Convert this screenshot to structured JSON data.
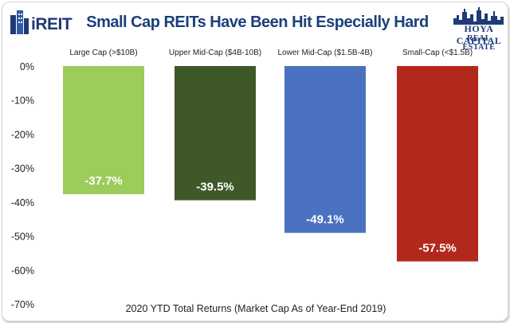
{
  "brand_left": "iREIT",
  "brand_right": {
    "line1": "HOYA CAPITAL",
    "line2": "REAL ESTATE"
  },
  "colors": {
    "title": "#1c3f7a",
    "bars": [
      "#9ccc5a",
      "#3e5827",
      "#4b72c0",
      "#b2281c"
    ]
  },
  "chart_data": {
    "type": "bar",
    "title": "Small Cap REITs Have Been Hit Especially Hard",
    "xlabel": "2020 YTD Total Returns (Market Cap As of Year-End 2019)",
    "ylabel": "",
    "categories": [
      "Large Cap (>$10B)",
      "Upper Mid-Cap ($4B-10B)",
      "Lower Mid-Cap ($1.5B-4B)",
      "Small-Cap (<$1.5B)"
    ],
    "values": [
      -37.7,
      -39.5,
      -49.1,
      -57.5
    ],
    "value_labels": [
      "-37.7%",
      "-39.5%",
      "-49.1%",
      "-57.5%"
    ],
    "ylim": [
      -70,
      0
    ],
    "yticks": [
      0,
      -10,
      -20,
      -30,
      -40,
      -50,
      -60,
      -70
    ],
    "ytick_labels": [
      "0%",
      "-10%",
      "-20%",
      "-30%",
      "-40%",
      "-50%",
      "-60%",
      "-70%"
    ],
    "grid": false,
    "legend": "none"
  }
}
